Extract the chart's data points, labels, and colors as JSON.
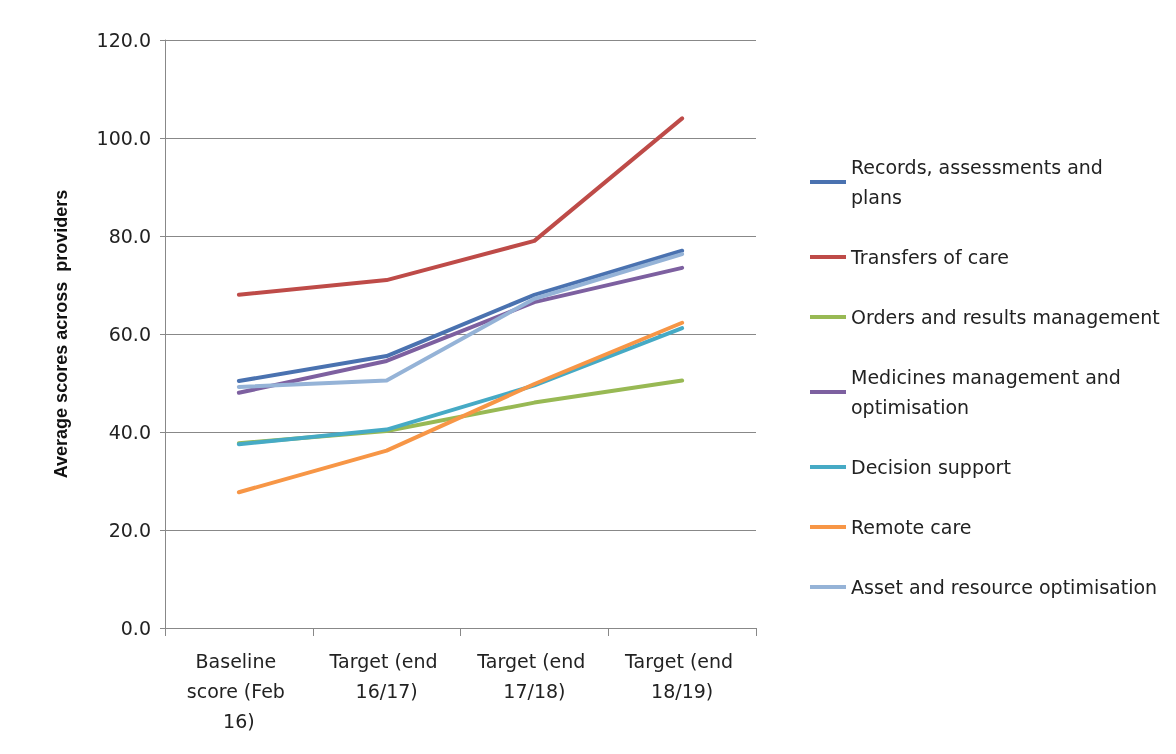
{
  "chart_data": {
    "type": "line",
    "ylabel": "Average scores across  providers",
    "categories": [
      "Baseline score (Feb 16)",
      "Target (end 16/17)",
      "Target (end 17/18)",
      "Target (end 18/19)"
    ],
    "series": [
      {
        "name": "Records, assessments and plans",
        "color": "#4a72b0",
        "values": [
          50.4,
          55.5,
          68,
          77
        ]
      },
      {
        "name": "Transfers of care",
        "color": "#be4b48",
        "values": [
          68,
          71,
          79,
          104
        ]
      },
      {
        "name": "Orders and results management",
        "color": "#98b954",
        "values": [
          37.7,
          40.2,
          46,
          50.5
        ]
      },
      {
        "name": "Medicines management and optimisation",
        "color": "#7d60a0",
        "values": [
          48,
          54.5,
          66.5,
          73.5
        ]
      },
      {
        "name": "Decision support",
        "color": "#46aac5",
        "values": [
          37.5,
          40.5,
          49.5,
          61.2
        ]
      },
      {
        "name": "Remote care",
        "color": "#f79646",
        "values": [
          27.7,
          36.2,
          49.8,
          62.3
        ]
      },
      {
        "name": "Asset and resource optimisation",
        "color": "#95b3d7",
        "values": [
          49.2,
          50.5,
          67.2,
          76.3
        ]
      }
    ],
    "ylim": [
      0,
      120
    ],
    "yticks": [
      {
        "value": 0,
        "label": "0.0"
      },
      {
        "value": 20,
        "label": "20.0"
      },
      {
        "value": 40,
        "label": "40.0"
      },
      {
        "value": 60,
        "label": "60.0"
      },
      {
        "value": 80,
        "label": "80.0"
      },
      {
        "value": 100,
        "label": "100.0"
      },
      {
        "value": 120,
        "label": "120.0"
      }
    ],
    "grid": "y",
    "legend": "right",
    "marker": "none",
    "line_style": "solid"
  }
}
